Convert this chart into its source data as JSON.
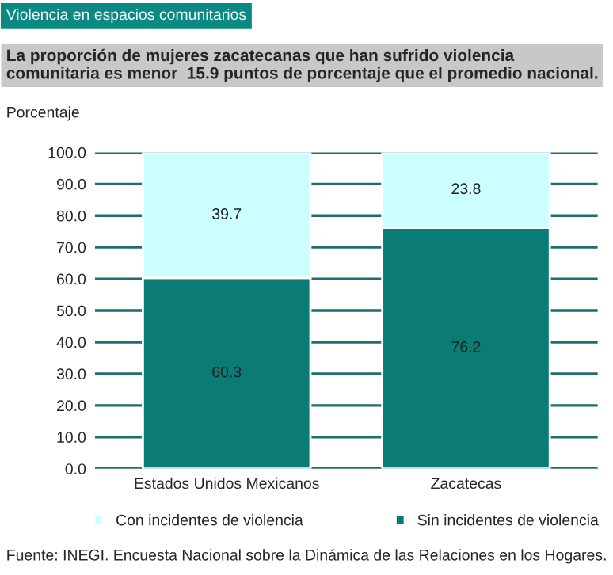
{
  "chart_data": {
    "type": "bar",
    "stacked": true,
    "title": "Violencia en espacios comunitarios",
    "subtitle": "La proporción de mujeres zacatecanas que han sufrido violencia comunitaria es menor  15.9 puntos de porcentaje que el promedio nacional.",
    "ylabel": "Porcentaje",
    "categories": [
      "Estados Unidos Mexicanos",
      "Zacatecas"
    ],
    "series": [
      {
        "name": "Sin incidentes de violencia",
        "color": "#0b7b76",
        "values": [
          60.3,
          76.2
        ]
      },
      {
        "name": "Con incidentes de violencia",
        "color": "#ccffff",
        "values": [
          39.7,
          23.8
        ]
      }
    ],
    "ylim": [
      0,
      100
    ],
    "yticks": [
      {
        "value": 0,
        "label": "0.0"
      },
      {
        "value": 10,
        "label": "10.0"
      },
      {
        "value": 20,
        "label": "20.0"
      },
      {
        "value": 30,
        "label": "30.0"
      },
      {
        "value": 40,
        "label": "40.0"
      },
      {
        "value": 50,
        "label": "50.0"
      },
      {
        "value": 60,
        "label": "60.0"
      },
      {
        "value": 70,
        "label": "70.0"
      },
      {
        "value": 80,
        "label": "80.0"
      },
      {
        "value": 90,
        "label": "90.0"
      },
      {
        "value": 100,
        "label": "100.0"
      }
    ],
    "data_labels": true,
    "grid": "y",
    "legend": "bottom",
    "annotations": [
      "Fuente: INEGI. Encuesta Nacional sobre la Dinámica de las Relaciones en los Hogares."
    ]
  }
}
